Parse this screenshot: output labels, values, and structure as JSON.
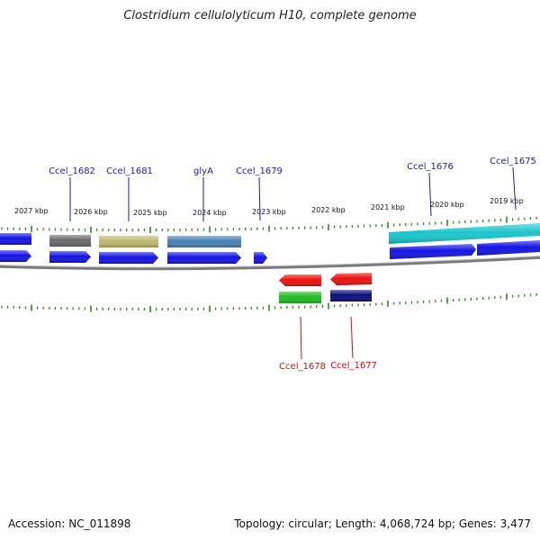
{
  "title": "Clostridium cellulolyticum H10, complete genome",
  "accession": "Accession: NC_011898",
  "summary": "Topology: circular; Length: 4,068,724 bp; Genes: 3,477",
  "colors": {
    "tick": "#2a8a1a",
    "backbone": "#777777",
    "forward_label": "#1a1aa8",
    "reverse_label": "#c81010",
    "gene_blue": "#1414e6",
    "gene_gray": "#6a6a6a",
    "gene_khaki": "#bdb76b",
    "gene_steel": "#4682b4",
    "gene_cyan": "#19c6cc",
    "gene_red": "#ee1010",
    "gene_green": "#22bb22",
    "gene_navy": "#0c0c80"
  },
  "kbp_labels": [
    "2027 kbp",
    "2026 kbp",
    "2025 kbp",
    "2024 kbp",
    "2023 kbp",
    "2022 kbp",
    "2021 kbp",
    "2020 kbp",
    "2019 kbp"
  ],
  "forward_labels": [
    "Ccel_1682",
    "Ccel_1681",
    "glyA",
    "Ccel_1679",
    "Ccel_1676",
    "Ccel_1675"
  ],
  "reverse_labels": [
    "Ccel_1678",
    "Ccel_1677"
  ]
}
